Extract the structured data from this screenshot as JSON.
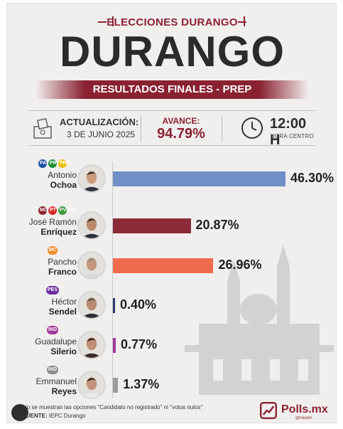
{
  "header": {
    "kicker": "ELECCIONES DURANGO",
    "title": "DURANGO",
    "subtitle": "RESULTADOS FINALES - PREP"
  },
  "info": {
    "update_label": "ACTUALIZACIÓN:",
    "update_date": "3 DE JUNIO 2025",
    "progress_label": "AVANCE:",
    "progress_value": "94.79%",
    "time_value": "12:00 H",
    "time_label": "HORA CENTRO"
  },
  "colors": {
    "accent": "#8a2232"
  },
  "chart_data": {
    "type": "bar",
    "orientation": "horizontal",
    "unit": "%",
    "categories": [
      "Antonio Ochoa",
      "José Ramón Enríquez",
      "Pancho Franco",
      "Héctor Sendel",
      "Guadalupe Silerio",
      "Emmanuel Reyes"
    ],
    "values": [
      46.3,
      20.87,
      26.96,
      0.4,
      0.77,
      1.37
    ],
    "labels": [
      "46.30%",
      "20.87%",
      "26.96%",
      "0.40%",
      "0.77%",
      "1.37%"
    ],
    "bar_colors": [
      "#6f8fc7",
      "#8d2a38",
      "#f06a4c",
      "#2a3d6b",
      "#a3379a",
      "#9a9a9a"
    ],
    "title": "DURANGO",
    "xlim": [
      0,
      50
    ],
    "grid": false,
    "legend": "none"
  },
  "candidates": [
    {
      "first": "Antonio",
      "last": "Ochoa",
      "party": [
        "PAN",
        "PRI",
        "PRD"
      ],
      "party_colors": [
        "#1b4fa0",
        "#1a8f3a",
        "#e8c000"
      ]
    },
    {
      "first": "José Ramón",
      "last": "Enríquez",
      "party": [
        "MOR",
        "PT",
        "PVEM"
      ],
      "party_colors": [
        "#8a2232",
        "#d62828",
        "#3a9a3a"
      ]
    },
    {
      "first": "Pancho",
      "last": "Franco",
      "party": [
        "MC"
      ],
      "party_colors": [
        "#f28c28"
      ]
    },
    {
      "first": "Héctor",
      "last": "Sendel",
      "party": [
        "PES"
      ],
      "party_colors": [
        "#6b2fa3"
      ]
    },
    {
      "first": "Guadalupe",
      "last": "Silerio",
      "party": [
        "IND"
      ],
      "party_colors": [
        "#a3379a"
      ]
    },
    {
      "first": "Emmanuel",
      "last": "Reyes",
      "party": [
        "IND"
      ],
      "party_colors": [
        "#8a8a8a"
      ]
    }
  ],
  "footer": {
    "note": "No se muestran las opciones \"Candidato no registrado\" ni \"votos nulos\"",
    "source_label": "FUENTE:",
    "source": "IEPC Durango",
    "brand": "Polls.mx",
    "brand_sub": "@PollsMX"
  }
}
